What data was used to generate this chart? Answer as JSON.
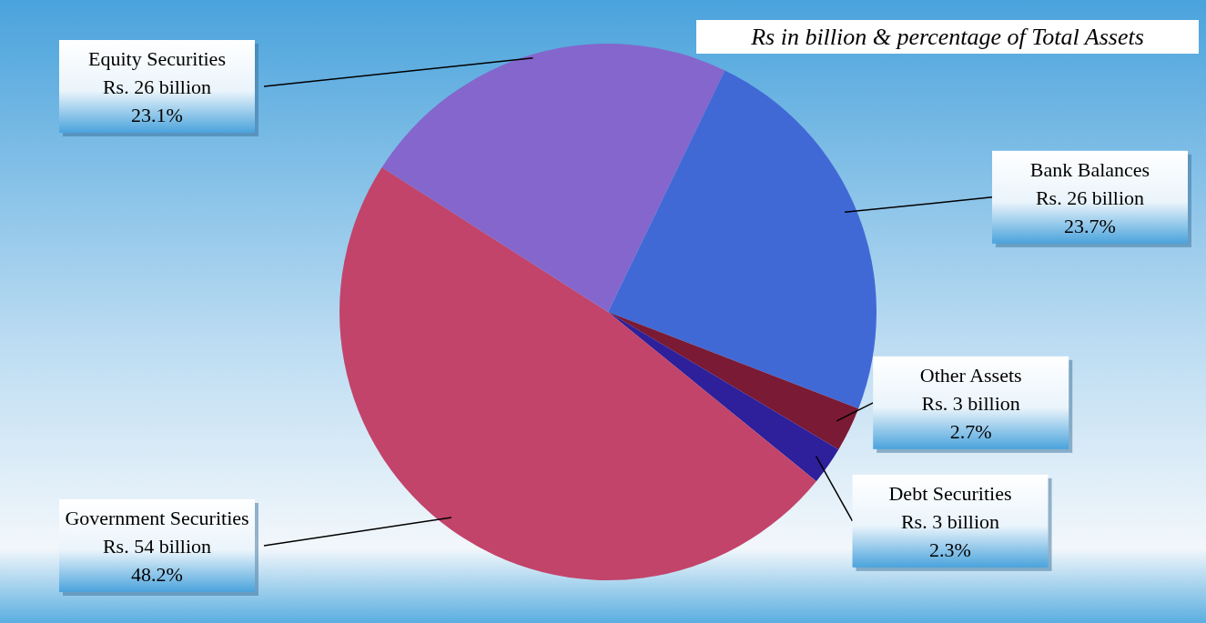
{
  "chart_data": {
    "type": "pie",
    "title": "Rs in billion & percentage  of Total Assets",
    "categories": [
      "Bank Balances",
      "Other Assets",
      "Debt Securities",
      "Government Securities",
      "Equity Securities"
    ],
    "values": [
      23.7,
      2.7,
      2.3,
      48.2,
      23.1
    ],
    "colors": [
      "#4169d6",
      "#7a1a35",
      "#2e1f9a",
      "#c2446a",
      "#8466cc"
    ],
    "value_labels": [
      "Rs. 26 billion\n23.7%",
      "Rs. 3 billion\n2.7%",
      "Rs. 3 billion\n2.3%",
      "Rs. 54 billion\n48.2%",
      "Rs. 26 billion\n23.1%"
    ]
  }
}
